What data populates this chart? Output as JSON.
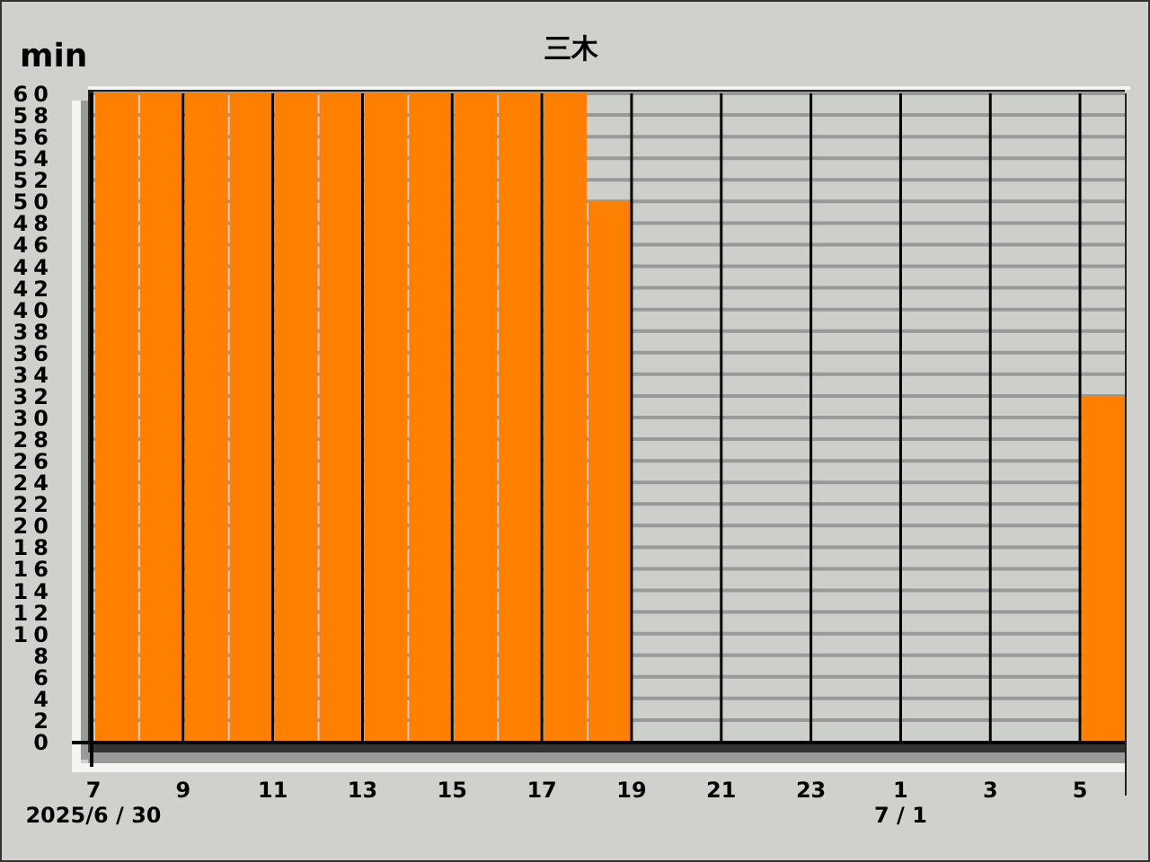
{
  "chart_data": {
    "type": "histogram",
    "title": "三木",
    "ylabel": "min",
    "bins": [
      "2025-06-30T07:00",
      "2025-06-30T08:00",
      "2025-06-30T09:00",
      "2025-06-30T10:00",
      "2025-06-30T11:00",
      "2025-06-30T12:00",
      "2025-06-30T13:00",
      "2025-06-30T14:00",
      "2025-06-30T15:00",
      "2025-06-30T16:00",
      "2025-06-30T17:00",
      "2025-06-30T18:00",
      "2025-06-30T19:00",
      "2025-06-30T20:00",
      "2025-06-30T21:00",
      "2025-06-30T22:00",
      "2025-06-30T23:00",
      "2025-07-01T00:00",
      "2025-07-01T01:00",
      "2025-07-01T02:00",
      "2025-07-01T03:00",
      "2025-07-01T04:00",
      "2025-07-01T05:00",
      "2025-07-01T06:00"
    ],
    "values": [
      60,
      60,
      60,
      60,
      60,
      60,
      60,
      60,
      60,
      60,
      60,
      50,
      0,
      0,
      0,
      0,
      0,
      0,
      0,
      0,
      0,
      0,
      32
    ],
    "color": "#ff8000",
    "xlim": [
      "2025-06-30T07:00",
      "2025-07-01T06:00"
    ],
    "xticks": [
      {
        "value": "2025-06-30T07:00",
        "label": "7\n2025/6 / 30"
      },
      {
        "value": "2025-06-30T09:00",
        "label": "9"
      },
      {
        "value": "2025-06-30T11:00",
        "label": "11"
      },
      {
        "value": "2025-06-30T13:00",
        "label": "13"
      },
      {
        "value": "2025-06-30T15:00",
        "label": "15"
      },
      {
        "value": "2025-06-30T17:00",
        "label": "17"
      },
      {
        "value": "2025-06-30T19:00",
        "label": "19"
      },
      {
        "value": "2025-06-30T21:00",
        "label": "21"
      },
      {
        "value": "2025-06-30T23:00",
        "label": "23"
      },
      {
        "value": "2025-07-01T01:00",
        "label": "1\n7 / 1"
      },
      {
        "value": "2025-07-01T03:00",
        "label": "3"
      },
      {
        "value": "2025-07-01T05:00",
        "label": "5"
      }
    ],
    "ylim": [
      0,
      60
    ],
    "yticks": [
      0,
      2,
      4,
      6,
      8,
      10,
      12,
      14,
      16,
      18,
      20,
      22,
      24,
      26,
      28,
      30,
      32,
      34,
      36,
      38,
      40,
      42,
      44,
      46,
      48,
      50,
      52,
      54,
      56,
      58,
      60
    ],
    "grid": true
  }
}
